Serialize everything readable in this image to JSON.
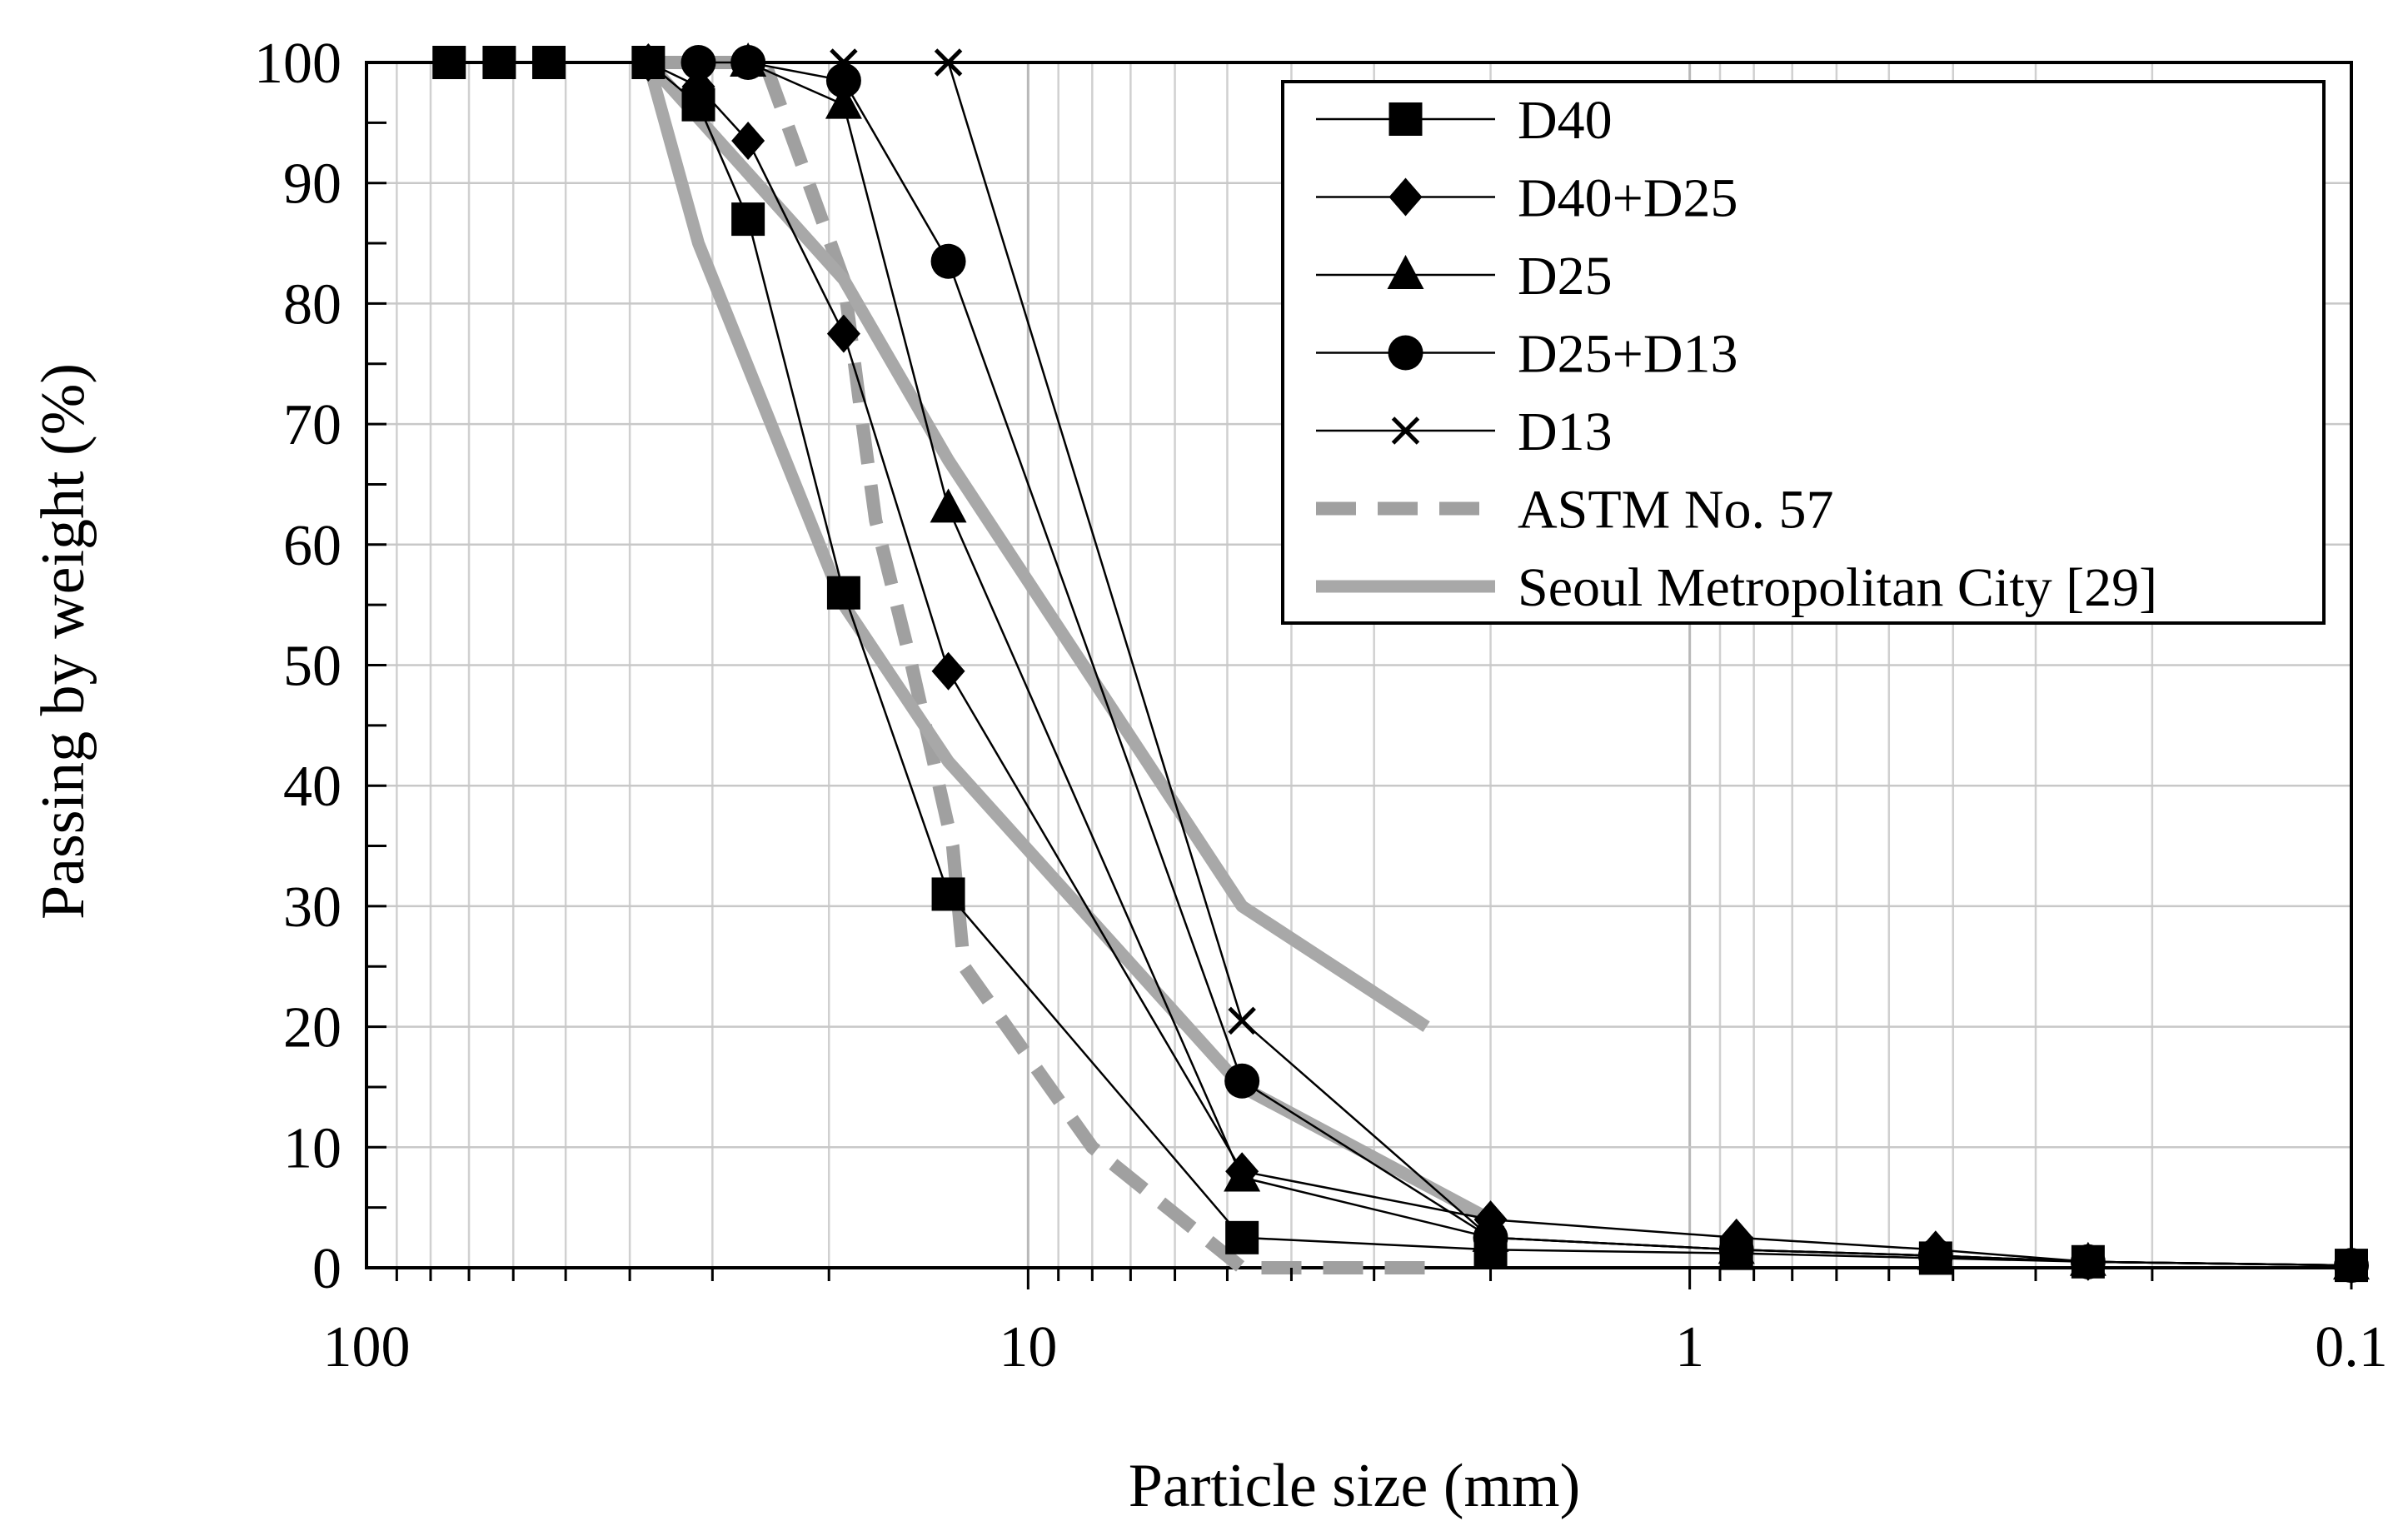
{
  "chart_data": {
    "type": "line",
    "title": "",
    "xlabel": "Particle size (mm)",
    "ylabel": "Passing by weight (%)",
    "x_scale": "log",
    "x_reversed": true,
    "xlim": [
      100,
      0.1
    ],
    "ylim": [
      0,
      100
    ],
    "grid": true,
    "legend_position": "top-right",
    "x_tick_labels": [
      {
        "value": 100,
        "label": "100"
      },
      {
        "value": 10,
        "label": "10"
      },
      {
        "value": 1,
        "label": "1"
      },
      {
        "value": 0.1,
        "label": "0.1"
      }
    ],
    "y_tick_labels": [
      {
        "value": 0,
        "label": "0"
      },
      {
        "value": 10,
        "label": "10"
      },
      {
        "value": 20,
        "label": "20"
      },
      {
        "value": 30,
        "label": "30"
      },
      {
        "value": 40,
        "label": "40"
      },
      {
        "value": 50,
        "label": "50"
      },
      {
        "value": 60,
        "label": "60"
      },
      {
        "value": 70,
        "label": "70"
      },
      {
        "value": 80,
        "label": "80"
      },
      {
        "value": 90,
        "label": "90"
      },
      {
        "value": 100,
        "label": "100"
      }
    ],
    "series": [
      {
        "name": "D40",
        "marker": "square",
        "color": "#000000",
        "style": "solid",
        "points": [
          [
            75,
            100
          ],
          [
            63,
            100
          ],
          [
            53,
            100
          ],
          [
            37.5,
            100
          ],
          [
            31.5,
            96.5
          ],
          [
            26.5,
            87
          ],
          [
            19,
            56
          ],
          [
            13.2,
            31
          ],
          [
            4.75,
            2.5
          ],
          [
            2.0,
            1.5
          ],
          [
            0.85,
            1.2
          ],
          [
            0.425,
            0.8
          ],
          [
            0.25,
            0.5
          ],
          [
            0.1,
            0.2
          ]
        ]
      },
      {
        "name": "D40+D25",
        "marker": "diamond",
        "color": "#000000",
        "style": "solid",
        "points": [
          [
            37.5,
            100
          ],
          [
            31.5,
            98
          ],
          [
            26.5,
            93.5
          ],
          [
            19,
            77.5
          ],
          [
            13.2,
            49.5
          ],
          [
            4.75,
            8
          ],
          [
            2.0,
            4
          ],
          [
            0.85,
            2.5
          ],
          [
            0.425,
            1.5
          ],
          [
            0.25,
            0.5
          ],
          [
            0.1,
            0.2
          ]
        ]
      },
      {
        "name": "D25",
        "marker": "triangle",
        "color": "#000000",
        "style": "solid",
        "points": [
          [
            26.5,
            100
          ],
          [
            19,
            96.5
          ],
          [
            13.2,
            63
          ],
          [
            4.75,
            7.5
          ],
          [
            2.0,
            2.5
          ],
          [
            0.85,
            1.5
          ],
          [
            0.425,
            1
          ],
          [
            0.25,
            0.5
          ],
          [
            0.1,
            0.2
          ]
        ]
      },
      {
        "name": "D25+D13",
        "marker": "circle",
        "color": "#000000",
        "style": "solid",
        "points": [
          [
            31.5,
            100
          ],
          [
            26.5,
            100
          ],
          [
            19,
            98.5
          ],
          [
            13.2,
            83.5
          ],
          [
            4.75,
            15.5
          ],
          [
            2.0,
            2.5
          ],
          [
            0.85,
            1.5
          ],
          [
            0.425,
            1
          ],
          [
            0.25,
            0.5
          ],
          [
            0.1,
            0.2
          ]
        ]
      },
      {
        "name": "D13",
        "marker": "x",
        "color": "#000000",
        "style": "solid",
        "points": [
          [
            19,
            100
          ],
          [
            13.2,
            100
          ],
          [
            4.75,
            20.5
          ],
          [
            2.0,
            2.5
          ],
          [
            0.85,
            1.5
          ],
          [
            0.425,
            1
          ],
          [
            0.25,
            0.5
          ],
          [
            0.1,
            0.2
          ]
        ]
      },
      {
        "name": "ASTM No. 57",
        "marker": "none",
        "color": "#a0a0a0",
        "style": "dashed",
        "points": [
          [
            37.5,
            100
          ],
          [
            25,
            100
          ],
          [
            19,
            82
          ],
          [
            18,
            72
          ],
          [
            17,
            62
          ],
          [
            15,
            50
          ],
          [
            13,
            35
          ],
          [
            12.5,
            25
          ],
          [
            8,
            10
          ],
          [
            4.75,
            0
          ],
          [
            2.36,
            0
          ]
        ]
      },
      {
        "name": "Seoul Metropolitan City [29]",
        "marker": "none",
        "color": "#a8a8a8",
        "style": "solid-thick",
        "points": [
          [
            37.5,
            100
          ],
          [
            31.5,
            85
          ],
          [
            19,
            55
          ],
          [
            13.2,
            42
          ],
          [
            4.75,
            15
          ],
          [
            2.0,
            4
          ]
        ]
      },
      {
        "name": "Seoul Metropolitan City [29]",
        "marker": "none",
        "color": "#a8a8a8",
        "style": "solid-thick",
        "points": [
          [
            37.5,
            100
          ],
          [
            19,
            82
          ],
          [
            13.2,
            67
          ],
          [
            4.75,
            30
          ],
          [
            2.5,
            20
          ]
        ]
      }
    ]
  }
}
